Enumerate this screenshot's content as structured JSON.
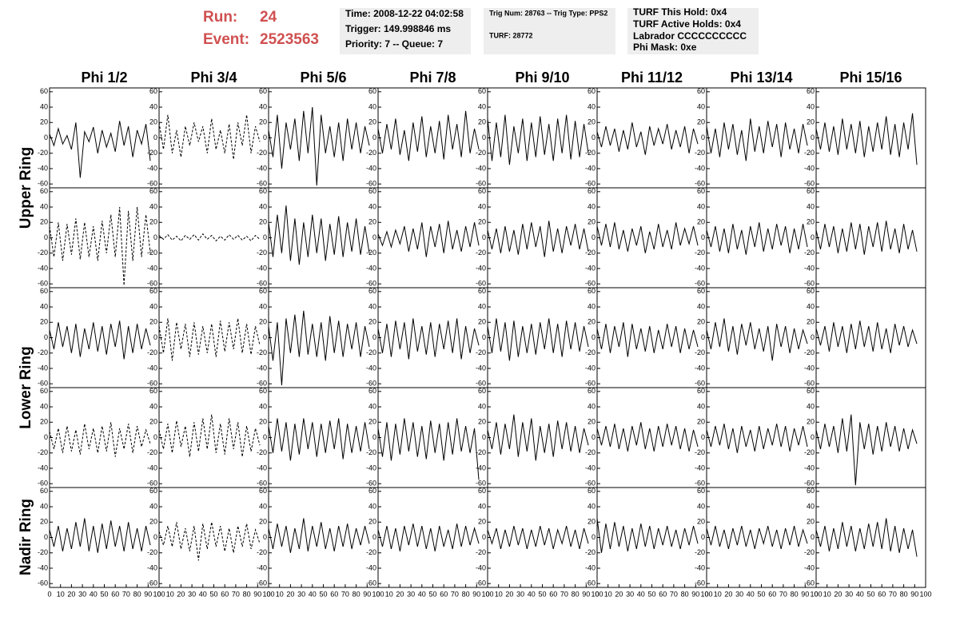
{
  "header": {
    "run_label": "Run:",
    "run": "24",
    "event_label": "Event:",
    "event": "2523563",
    "boxes": [
      [
        "Time: 2008-12-22 04:02:58",
        "Trigger: 149.998846 ms",
        "Priority: 7 -- Queue: 7"
      ],
      [
        "Trig Num: 28763 -- Trig Type: PPS2",
        "TURF: 28772"
      ],
      [
        "TURF This Hold: 0x4",
        "TURF Active Holds: 0x4",
        "Labrador CCCCCCCCCC",
        "Phi Mask: 0xe"
      ]
    ]
  },
  "chart_data": {
    "type": "line",
    "columns": [
      "Phi 1/2",
      "Phi 3/4",
      "Phi 5/6",
      "Phi 7/8",
      "Phi 9/10",
      "Phi 11/12",
      "Phi 13/14",
      "Phi 15/16"
    ],
    "rows": [
      "Upper Ring",
      "Lower Ring",
      "Nadir Ring"
    ],
    "xlim": [
      0,
      100
    ],
    "xticks": [
      0,
      10,
      20,
      30,
      40,
      50,
      60,
      70,
      80,
      90,
      100
    ],
    "ylim": [
      -65,
      65
    ],
    "yticks": [
      -60,
      -40,
      -20,
      0,
      20,
      40,
      60
    ],
    "x": [
      0,
      4,
      8,
      12,
      16,
      20,
      24,
      28,
      32,
      36,
      40,
      44,
      48,
      52,
      56,
      60,
      64,
      68,
      72,
      76,
      80,
      84,
      88,
      92
    ],
    "color": "#000000",
    "panels": [
      {
        "style": "solid",
        "values": [
          5,
          -10,
          12,
          -8,
          3,
          -15,
          20,
          -52,
          8,
          -5,
          14,
          -20,
          10,
          -12,
          6,
          -18,
          22,
          -10,
          15,
          -25,
          10,
          -8,
          18,
          -30
        ]
      },
      {
        "style": "dashed",
        "values": [
          20,
          -15,
          30,
          -20,
          10,
          -25,
          15,
          -10,
          20,
          -5,
          15,
          -20,
          25,
          -15,
          10,
          -20,
          18,
          -28,
          20,
          -10,
          30,
          -20,
          15,
          -5
        ]
      },
      {
        "style": "solid",
        "values": [
          10,
          -25,
          30,
          -40,
          20,
          -15,
          25,
          -30,
          35,
          -20,
          40,
          -62,
          30,
          -20,
          15,
          -25,
          20,
          -30,
          25,
          -15,
          20,
          -20,
          15,
          -10
        ]
      },
      {
        "style": "solid",
        "values": [
          12,
          -20,
          18,
          -15,
          25,
          -22,
          10,
          -30,
          20,
          -18,
          28,
          -25,
          15,
          -20,
          22,
          -28,
          30,
          -15,
          18,
          -25,
          35,
          -20,
          12,
          -15
        ]
      },
      {
        "style": "solid",
        "values": [
          25,
          -30,
          20,
          -25,
          30,
          -35,
          15,
          -20,
          25,
          -30,
          20,
          -25,
          28,
          -22,
          18,
          -30,
          25,
          -20,
          30,
          -28,
          22,
          -25,
          18,
          -20
        ]
      },
      {
        "style": "solid",
        "values": [
          8,
          -12,
          15,
          -10,
          12,
          -18,
          10,
          -15,
          20,
          -12,
          8,
          -22,
          15,
          -10,
          12,
          -8,
          18,
          -15,
          10,
          -12,
          15,
          -20,
          12,
          -8
        ]
      },
      {
        "style": "solid",
        "values": [
          15,
          -20,
          12,
          -25,
          20,
          -15,
          18,
          -22,
          10,
          -30,
          25,
          -18,
          15,
          -20,
          22,
          -12,
          18,
          -25,
          20,
          -15,
          12,
          -20,
          18,
          -10
        ]
      },
      {
        "style": "solid",
        "values": [
          12,
          -15,
          20,
          -18,
          15,
          -22,
          25,
          -15,
          18,
          -20,
          22,
          -25,
          15,
          -18,
          20,
          -15,
          28,
          -22,
          18,
          -25,
          20,
          -15,
          32,
          -35
        ]
      },
      {
        "style": "dashed",
        "values": [
          15,
          -25,
          20,
          -30,
          18,
          -22,
          25,
          -28,
          20,
          -25,
          15,
          -30,
          22,
          -20,
          30,
          -25,
          40,
          -62,
          35,
          -30,
          40,
          -25,
          30,
          -20
        ]
      },
      {
        "style": "dashed",
        "values": [
          3,
          -2,
          4,
          -3,
          2,
          -4,
          3,
          -2,
          4,
          -3,
          5,
          -2,
          3,
          -4,
          2,
          -3,
          4,
          -2,
          3,
          -3,
          2,
          -4,
          3,
          -2
        ]
      },
      {
        "style": "solid",
        "values": [
          20,
          -25,
          30,
          -20,
          42,
          -30,
          25,
          -35,
          20,
          -25,
          30,
          -20,
          25,
          -30,
          18,
          -22,
          28,
          -25,
          20,
          -18,
          25,
          -22,
          15,
          -20
        ]
      },
      {
        "style": "solid",
        "values": [
          5,
          -10,
          8,
          -12,
          10,
          -8,
          15,
          -18,
          12,
          -15,
          20,
          -25,
          15,
          -12,
          18,
          -20,
          22,
          -15,
          10,
          -18,
          15,
          -12,
          20,
          -10
        ]
      },
      {
        "style": "solid",
        "values": [
          10,
          -15,
          12,
          -20,
          15,
          -18,
          10,
          -22,
          18,
          -15,
          20,
          -12,
          15,
          -25,
          22,
          -18,
          12,
          -20,
          15,
          -10,
          18,
          -15,
          12,
          -18
        ]
      },
      {
        "style": "solid",
        "values": [
          15,
          -10,
          18,
          -12,
          20,
          -15,
          10,
          -18,
          12,
          -10,
          15,
          -20,
          8,
          -15,
          18,
          -12,
          10,
          -15,
          20,
          -10,
          12,
          -8,
          15,
          -10
        ]
      },
      {
        "style": "solid",
        "values": [
          10,
          -12,
          15,
          -18,
          12,
          -20,
          18,
          -15,
          10,
          -22,
          15,
          -12,
          20,
          -18,
          12,
          -15,
          18,
          -10,
          15,
          -20,
          12,
          -15,
          18,
          -12
        ]
      },
      {
        "style": "solid",
        "values": [
          10,
          -15,
          18,
          -12,
          15,
          -20,
          12,
          -18,
          20,
          -15,
          18,
          -22,
          15,
          -12,
          20,
          -18,
          22,
          -15,
          12,
          -20,
          18,
          -15,
          10,
          -18
        ]
      },
      {
        "style": "solid",
        "values": [
          10,
          -15,
          20,
          -12,
          15,
          -20,
          18,
          -25,
          12,
          -15,
          20,
          -18,
          15,
          -22,
          18,
          -12,
          22,
          -28,
          15,
          -20,
          18,
          -15,
          12,
          -10
        ]
      },
      {
        "style": "dashed",
        "values": [
          15,
          -20,
          25,
          -30,
          20,
          -15,
          18,
          -25,
          20,
          -22,
          15,
          -20,
          18,
          -25,
          22,
          -18,
          20,
          -15,
          25,
          -20,
          18,
          -22,
          15,
          -10
        ]
      },
      {
        "style": "solid",
        "values": [
          15,
          -30,
          20,
          -62,
          25,
          -20,
          30,
          -25,
          35,
          -22,
          18,
          -25,
          20,
          -30,
          28,
          -20,
          22,
          -25,
          18,
          -15,
          20,
          -25,
          15,
          -12
        ]
      },
      {
        "style": "solid",
        "values": [
          12,
          -20,
          18,
          -25,
          22,
          -15,
          20,
          -28,
          25,
          -18,
          15,
          -22,
          20,
          -25,
          18,
          -15,
          22,
          -20,
          25,
          -28,
          15,
          -20,
          12,
          -10
        ]
      },
      {
        "style": "solid",
        "values": [
          15,
          -20,
          25,
          -18,
          20,
          -30,
          22,
          -25,
          15,
          -20,
          18,
          -22,
          20,
          -15,
          25,
          -20,
          18,
          -25,
          22,
          -15,
          20,
          -18,
          15,
          -12
        ]
      },
      {
        "style": "solid",
        "values": [
          12,
          -15,
          18,
          -20,
          15,
          -12,
          20,
          -25,
          18,
          -15,
          12,
          -18,
          15,
          -20,
          10,
          -15,
          18,
          -12,
          15,
          -20,
          12,
          -15,
          10,
          -12
        ]
      },
      {
        "style": "solid",
        "values": [
          10,
          -15,
          20,
          -12,
          25,
          -18,
          15,
          -22,
          18,
          -10,
          20,
          -15,
          12,
          -18,
          15,
          -30,
          18,
          -12,
          15,
          -20,
          12,
          -15,
          10,
          -8
        ]
      },
      {
        "style": "solid",
        "values": [
          12,
          -10,
          15,
          -18,
          20,
          -12,
          15,
          -20,
          18,
          -15,
          22,
          -12,
          15,
          -18,
          20,
          -15,
          12,
          -20,
          18,
          -10,
          15,
          -12,
          10,
          -8
        ]
      },
      {
        "style": "dashed",
        "values": [
          8,
          -15,
          12,
          -20,
          15,
          -18,
          10,
          -22,
          18,
          -15,
          12,
          -20,
          15,
          -18,
          20,
          -25,
          12,
          -15,
          18,
          -20,
          15,
          -12,
          10,
          -8
        ]
      },
      {
        "style": "dashed",
        "values": [
          10,
          -15,
          18,
          -20,
          22,
          -12,
          15,
          -25,
          20,
          -18,
          25,
          -15,
          30,
          -20,
          18,
          -22,
          25,
          -15,
          20,
          -25,
          15,
          -18,
          12,
          -10
        ]
      },
      {
        "style": "solid",
        "values": [
          15,
          -20,
          25,
          -18,
          20,
          -30,
          18,
          -22,
          25,
          -15,
          20,
          -25,
          18,
          -20,
          22,
          -15,
          25,
          -28,
          18,
          -20,
          15,
          -18,
          20,
          -15
        ]
      },
      {
        "style": "solid",
        "values": [
          12,
          -25,
          20,
          -30,
          18,
          -22,
          25,
          -18,
          20,
          -25,
          15,
          -28,
          22,
          -20,
          18,
          -30,
          20,
          -22,
          25,
          -18,
          15,
          -20,
          12,
          -55
        ]
      },
      {
        "style": "solid",
        "values": [
          10,
          -15,
          20,
          -22,
          18,
          -15,
          30,
          -25,
          20,
          -18,
          25,
          -30,
          15,
          -20,
          18,
          -25,
          22,
          -15,
          20,
          -18,
          15,
          -20,
          12,
          -10
        ]
      },
      {
        "style": "solid",
        "values": [
          12,
          -10,
          15,
          -12,
          18,
          -15,
          12,
          -18,
          15,
          -10,
          20,
          -15,
          12,
          -18,
          15,
          -12,
          18,
          -10,
          15,
          -15,
          12,
          -18,
          10,
          -12
        ]
      },
      {
        "style": "solid",
        "values": [
          10,
          -12,
          15,
          -10,
          18,
          -15,
          12,
          -20,
          15,
          -12,
          10,
          -18,
          15,
          -15,
          12,
          -10,
          18,
          -12,
          15,
          -18,
          12,
          -10,
          15,
          -12
        ]
      },
      {
        "style": "solid",
        "values": [
          10,
          -15,
          18,
          -12,
          15,
          -20,
          25,
          -18,
          30,
          -62,
          20,
          -15,
          18,
          -22,
          15,
          -18,
          20,
          -12,
          15,
          -18,
          12,
          -15,
          10,
          -8
        ]
      },
      {
        "style": "solid",
        "values": [
          10,
          -12,
          15,
          -18,
          12,
          -15,
          20,
          -12,
          25,
          -18,
          15,
          -20,
          18,
          -15,
          22,
          -12,
          15,
          -18,
          20,
          -15,
          12,
          -18,
          15,
          -10
        ]
      },
      {
        "style": "dashed",
        "values": [
          8,
          -10,
          15,
          -12,
          20,
          -15,
          12,
          -18,
          15,
          -30,
          18,
          -15,
          20,
          -12,
          15,
          -18,
          12,
          -20,
          15,
          -12,
          18,
          -15,
          10,
          -8
        ]
      },
      {
        "style": "solid",
        "values": [
          12,
          -15,
          18,
          -12,
          15,
          -20,
          12,
          -15,
          25,
          -18,
          15,
          -12,
          20,
          -15,
          12,
          -18,
          15,
          -12,
          18,
          -15,
          12,
          -10,
          15,
          -8
        ]
      },
      {
        "style": "solid",
        "values": [
          10,
          -12,
          15,
          -15,
          12,
          -18,
          15,
          -10,
          18,
          -12,
          15,
          -15,
          12,
          -18,
          15,
          -12,
          10,
          -15,
          18,
          -12,
          15,
          -10,
          12,
          -8
        ]
      },
      {
        "style": "solid",
        "values": [
          10,
          -8,
          12,
          -15,
          10,
          -12,
          15,
          -10,
          12,
          -15,
          10,
          -12,
          15,
          -10,
          12,
          -15,
          10,
          -8,
          15,
          -12,
          10,
          -15,
          12,
          -8
        ]
      },
      {
        "style": "solid",
        "values": [
          25,
          -20,
          18,
          -15,
          20,
          -12,
          15,
          -18,
          12,
          -15,
          18,
          -12,
          15,
          -15,
          12,
          -10,
          15,
          -12,
          10,
          -15,
          12,
          -10,
          15,
          -8
        ]
      },
      {
        "style": "solid",
        "values": [
          12,
          -10,
          15,
          -12,
          10,
          -15,
          12,
          -10,
          15,
          -12,
          10,
          -15,
          12,
          -8,
          15,
          -12,
          10,
          -15,
          12,
          -10,
          15,
          -12,
          10,
          -8
        ]
      },
      {
        "style": "solid",
        "values": [
          10,
          -12,
          15,
          -18,
          12,
          -15,
          20,
          -12,
          15,
          -18,
          12,
          -15,
          18,
          -12,
          20,
          -15,
          25,
          -18,
          15,
          -20,
          12,
          -15,
          10,
          -25
        ]
      }
    ]
  }
}
